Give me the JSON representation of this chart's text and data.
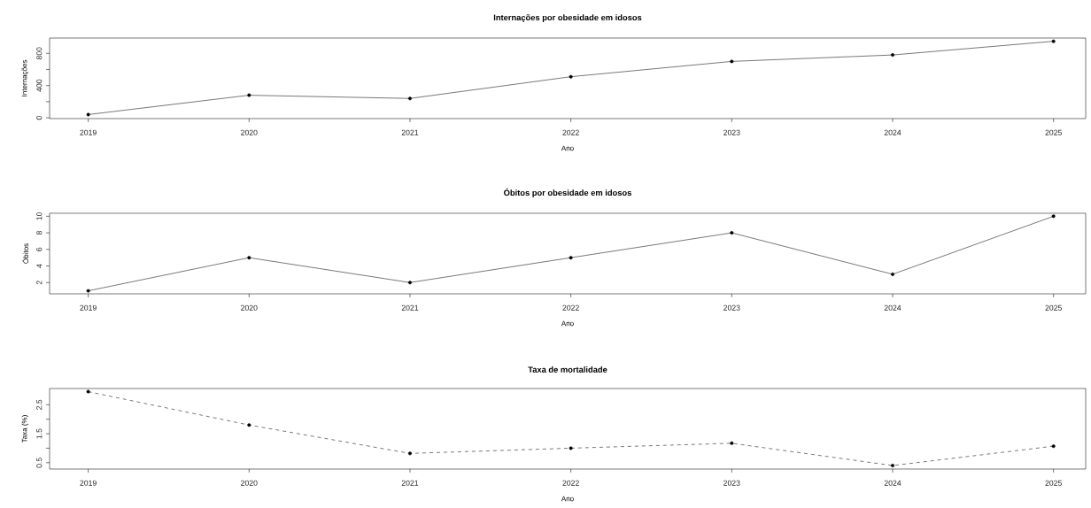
{
  "chart_data": [
    {
      "type": "line",
      "title": "Internações por obesidade em idosos",
      "xlabel": "Ano",
      "ylabel": "Internações",
      "x": [
        2019,
        2020,
        2021,
        2022,
        2023,
        2024,
        2025
      ],
      "series": [
        {
          "color": "#000000",
          "values": [
            40,
            280,
            240,
            510,
            700,
            780,
            950
          ]
        }
      ],
      "xlim": [
        2018.76,
        2025.2
      ],
      "xticks": [
        2019,
        2020,
        2021,
        2022,
        2023,
        2024,
        2025
      ],
      "ylim": [
        -10,
        990
      ],
      "yticks": [
        0,
        {
          "value": 200,
          "label": null
        },
        400,
        {
          "value": 600,
          "label": null
        },
        800
      ],
      "marker": "circle",
      "line_style": "solid"
    },
    {
      "type": "line",
      "title": "Óbitos por obesidade em idosos",
      "xlabel": "Ano",
      "ylabel": "Óbitos",
      "x": [
        2019,
        2020,
        2021,
        2022,
        2023,
        2024,
        2025
      ],
      "series": [
        {
          "color": "#000000",
          "values": [
            1,
            5,
            2,
            5,
            8,
            3,
            10
          ]
        }
      ],
      "xlim": [
        2018.76,
        2025.2
      ],
      "xticks": [
        2019,
        2020,
        2021,
        2022,
        2023,
        2024,
        2025
      ],
      "ylim": [
        0.64,
        10.36
      ],
      "yticks": [
        2,
        4,
        6,
        8,
        10
      ],
      "marker": "circle",
      "line_style": "solid"
    },
    {
      "type": "line",
      "title": "Taxa de mortalidade",
      "xlabel": "Ano",
      "ylabel": "Taxa (%)",
      "x": [
        2019,
        2020,
        2021,
        2022,
        2023,
        2024,
        2025
      ],
      "series": [
        {
          "color": "#000000",
          "values": [
            2.95,
            1.8,
            0.82,
            1.0,
            1.17,
            0.4,
            1.07
          ]
        }
      ],
      "xlim": [
        2018.76,
        2025.2
      ],
      "xticks": [
        2019,
        2020,
        2021,
        2022,
        2023,
        2024,
        2025
      ],
      "ylim": [
        0.28,
        3.06
      ],
      "yticks": [
        0.5,
        {
          "value": 1.0,
          "label": null
        },
        1.5,
        {
          "value": 2.0,
          "label": null
        },
        2.5
      ],
      "marker": "circle",
      "line_style": "dashed"
    }
  ]
}
